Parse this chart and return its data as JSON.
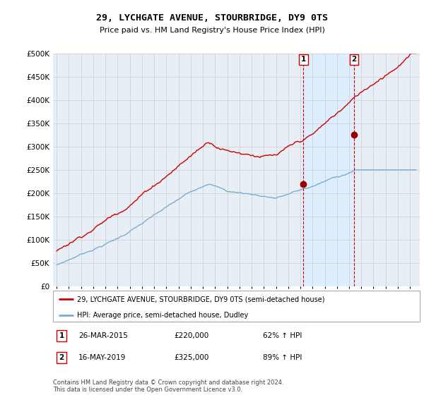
{
  "title": "29, LYCHGATE AVENUE, STOURBRIDGE, DY9 0TS",
  "subtitle": "Price paid vs. HM Land Registry's House Price Index (HPI)",
  "hpi_label": "HPI: Average price, semi-detached house, Dudley",
  "price_label": "29, LYCHGATE AVENUE, STOURBRIDGE, DY9 0TS (semi-detached house)",
  "sale1_date": "26-MAR-2015",
  "sale1_price": 220000,
  "sale1_pct": "62% ↑ HPI",
  "sale2_date": "16-MAY-2019",
  "sale2_price": 325000,
  "sale2_pct": "89% ↑ HPI",
  "footer": "Contains HM Land Registry data © Crown copyright and database right 2024.\nThis data is licensed under the Open Government Licence v3.0.",
  "ylim": [
    0,
    500000
  ],
  "xlim_left": 1994.7,
  "xlim_right": 2024.8,
  "price_color": "#cc0000",
  "hpi_color": "#7aadcf",
  "sale_marker_color": "#990000",
  "vline_color": "#cc0000",
  "grid_color": "#cccccc",
  "shade_color": "#ddeeff",
  "background_color": "#e8eef5",
  "legend_border_color": "#aaaaaa",
  "title_fontsize": 9.5,
  "subtitle_fontsize": 8
}
